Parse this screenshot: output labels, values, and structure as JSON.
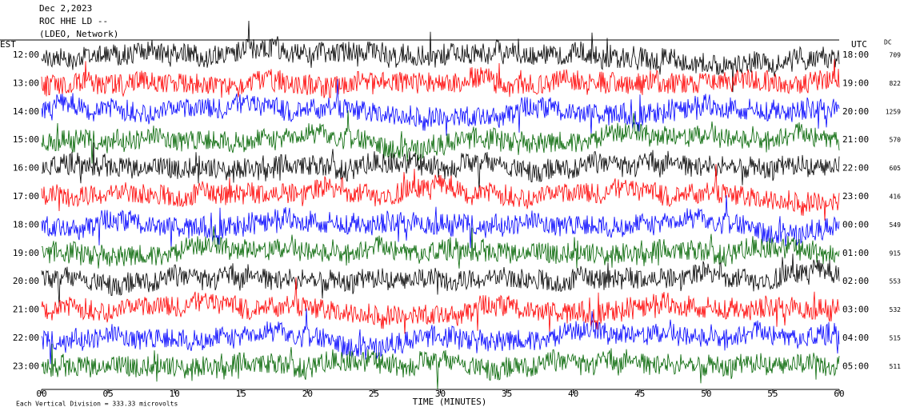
{
  "chart_data": {
    "type": "helicorder",
    "header": [
      "Dec 2,2023",
      "ROC HHE LD --",
      "(LDEO, Network)"
    ],
    "left_axis_title": "EST",
    "right_axis_title": "UTC",
    "dc_title": "DC",
    "x_label": "TIME (MINUTES)",
    "footnote": "Each Vertical Division =  333.33 microvolts",
    "xlim": [
      0,
      60
    ],
    "xticks": [
      {
        "value": 0,
        "label": "00"
      },
      {
        "value": 5,
        "label": "05"
      },
      10,
      15,
      20,
      25,
      30,
      35,
      40,
      45,
      50,
      55,
      60
    ],
    "rows": [
      {
        "est": "12:00",
        "utc": "18:00",
        "dc": 709,
        "color": "#000000"
      },
      {
        "est": "13:00",
        "utc": "19:00",
        "dc": 822,
        "color": "#ff0000"
      },
      {
        "est": "14:00",
        "utc": "20:00",
        "dc": 1259,
        "color": "#0000ff"
      },
      {
        "est": "15:00",
        "utc": "21:00",
        "dc": 570,
        "color": "#006400"
      },
      {
        "est": "16:00",
        "utc": "22:00",
        "dc": 605,
        "color": "#000000"
      },
      {
        "est": "17:00",
        "utc": "23:00",
        "dc": 416,
        "color": "#ff0000"
      },
      {
        "est": "18:00",
        "utc": "00:00",
        "dc": 549,
        "color": "#0000ff"
      },
      {
        "est": "19:00",
        "utc": "01:00",
        "dc": 915,
        "color": "#006400"
      },
      {
        "est": "20:00",
        "utc": "02:00",
        "dc": 553,
        "color": "#000000"
      },
      {
        "est": "21:00",
        "utc": "03:00",
        "dc": 532,
        "color": "#ff0000"
      },
      {
        "est": "22:00",
        "utc": "04:00",
        "dc": 515,
        "color": "#0000ff"
      },
      {
        "est": "23:00",
        "utc": "05:00",
        "dc": 511,
        "color": "#006400"
      }
    ]
  }
}
